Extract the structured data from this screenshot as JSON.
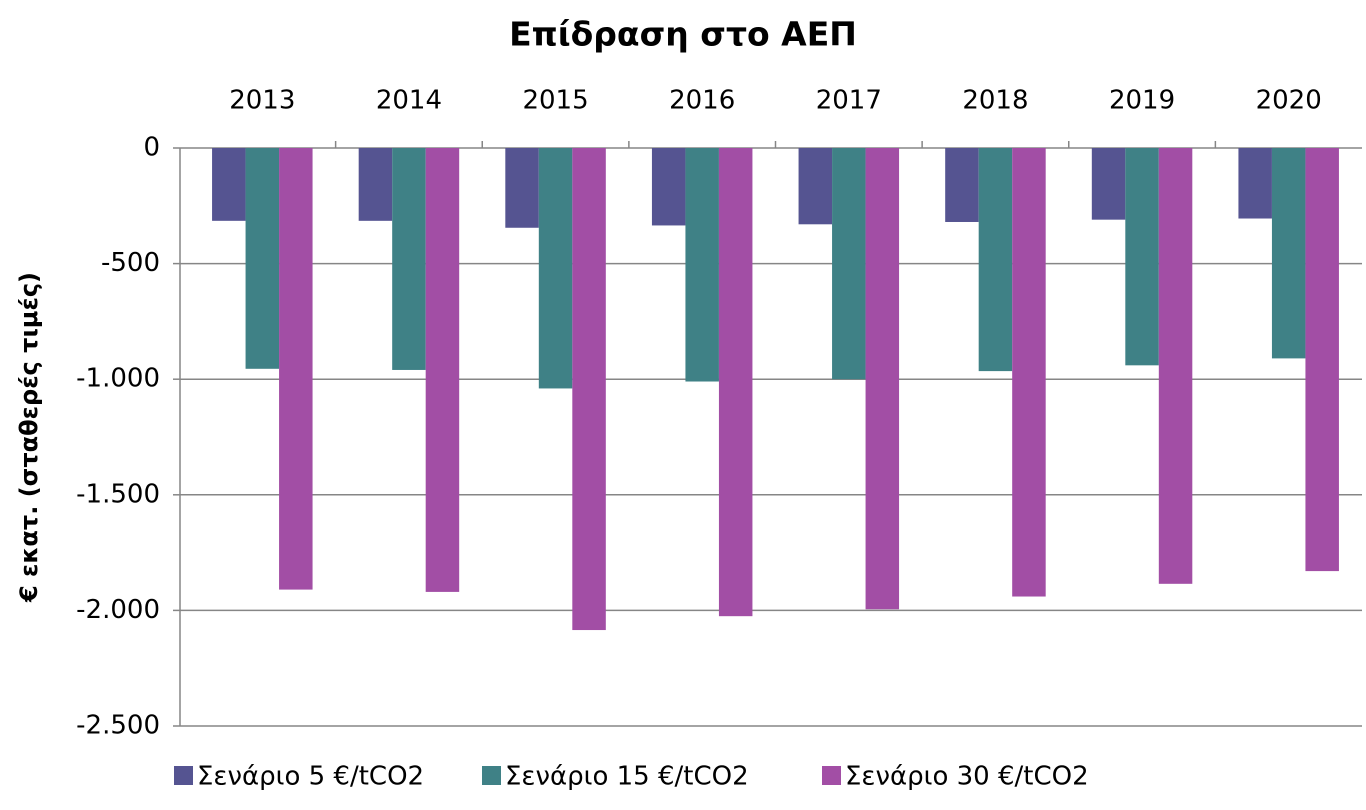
{
  "chart_data": {
    "type": "bar",
    "title": "Επίδραση στο ΑΕΠ",
    "y_label": "€ εκατ. (σταθερές τιμές)",
    "categories": [
      "2013",
      "2014",
      "2015",
      "2016",
      "2017",
      "2018",
      "2019",
      "2020"
    ],
    "series": [
      {
        "name": "Σενάριο 5 €/tCO2",
        "color": "#555491",
        "values": [
          -315,
          -315,
          -345,
          -335,
          -330,
          -320,
          -310,
          -305
        ]
      },
      {
        "name": "Σενάριο 15 €/tCO2",
        "color": "#3f8186",
        "values": [
          -955,
          -960,
          -1040,
          -1010,
          -1000,
          -965,
          -940,
          -910
        ]
      },
      {
        "name": "Σενάριο 30 €/tCO2",
        "color": "#a24ea5",
        "values": [
          -1910,
          -1920,
          -2085,
          -2025,
          -1995,
          -1940,
          -1885,
          -1830
        ]
      }
    ],
    "ylim": [
      -2500,
      0
    ],
    "yticks": [
      0,
      -500,
      {
        "value": -1000,
        "label": "-1.000"
      },
      {
        "value": -1500,
        "label": "-1.500"
      },
      {
        "value": -2000,
        "label": "-2.000"
      },
      {
        "value": -2500,
        "label": "-2.500"
      }
    ],
    "grid": true,
    "legend": "bottom"
  }
}
